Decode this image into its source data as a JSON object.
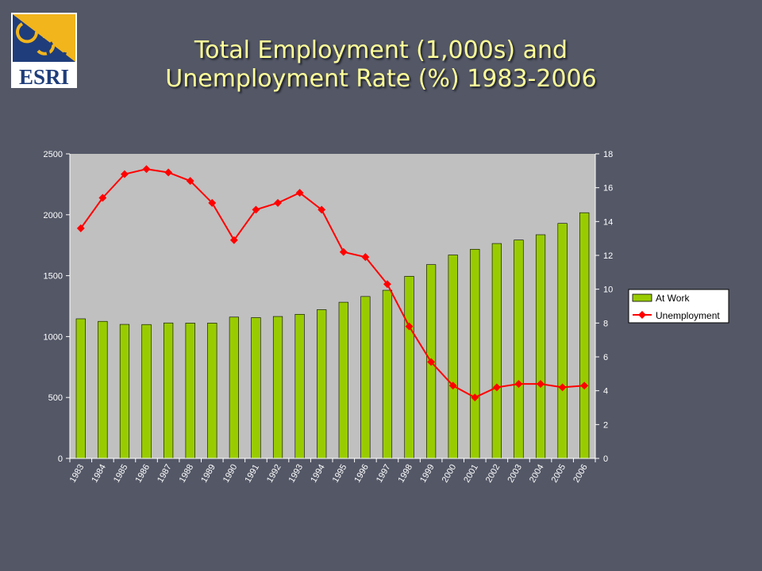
{
  "slide": {
    "title_line1": "Total Employment (1,000s) and",
    "title_line2": "Unemployment Rate (%) 1983-2006",
    "logo_text": "ESRI"
  },
  "chart_data": {
    "type": "bar",
    "title": "Total Employment (1,000s) and Unemployment Rate (%) 1983-2006",
    "categories": [
      "1983",
      "1984",
      "1985",
      "1986",
      "1987",
      "1988",
      "1989",
      "1990",
      "1991",
      "1992",
      "1993",
      "1994",
      "1995",
      "1996",
      "1997",
      "1998",
      "1999",
      "2000",
      "2001",
      "2002",
      "2003",
      "2004",
      "2005",
      "2006"
    ],
    "series": [
      {
        "name": "At Work",
        "type": "bar",
        "axis": "left",
        "color": "#99cc00",
        "values": [
          1146,
          1125,
          1100,
          1099,
          1112,
          1111,
          1111,
          1160,
          1156,
          1165,
          1183,
          1221,
          1282,
          1329,
          1380,
          1495,
          1591,
          1670,
          1717,
          1764,
          1793,
          1836,
          1929,
          2017
        ]
      },
      {
        "name": "Unemployment",
        "type": "line",
        "axis": "right",
        "color": "#ff0000",
        "values": [
          13.6,
          15.4,
          16.8,
          17.1,
          16.9,
          16.4,
          15.1,
          12.9,
          14.7,
          15.1,
          15.7,
          14.7,
          12.2,
          11.9,
          10.3,
          7.8,
          5.7,
          4.3,
          3.6,
          4.2,
          4.4,
          4.4,
          4.2,
          4.3
        ]
      }
    ],
    "y_left": {
      "min": 0,
      "max": 2500,
      "ticks": [
        0,
        500,
        1000,
        1500,
        2000,
        2500
      ]
    },
    "y_right": {
      "min": 0,
      "max": 18,
      "ticks": [
        0,
        2,
        4,
        6,
        8,
        10,
        12,
        14,
        16,
        18
      ]
    },
    "grid": false,
    "legend": "right",
    "plot_background": "#c0c0c0"
  }
}
